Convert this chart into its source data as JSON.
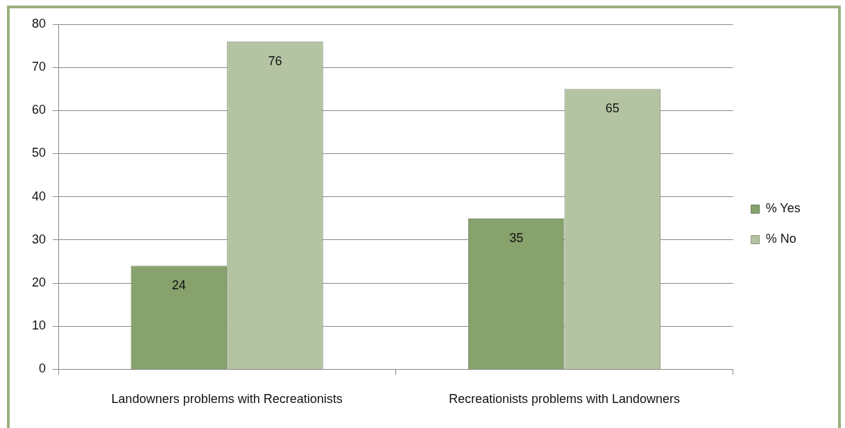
{
  "chart_data": {
    "type": "bar",
    "categories": [
      "Landowners problems with Recreationists",
      "Recreationists problems with Landowners"
    ],
    "series": [
      {
        "name": "% Yes",
        "color": "#87a26c",
        "values": [
          24,
          35
        ]
      },
      {
        "name": "% No",
        "color": "#b4c4a2",
        "values": [
          76,
          65
        ]
      }
    ],
    "ylim": [
      0,
      80
    ],
    "yticks": [
      0,
      10,
      20,
      30,
      40,
      50,
      60,
      70,
      80
    ],
    "grid": "y",
    "legend": "right",
    "data_labels": true
  }
}
